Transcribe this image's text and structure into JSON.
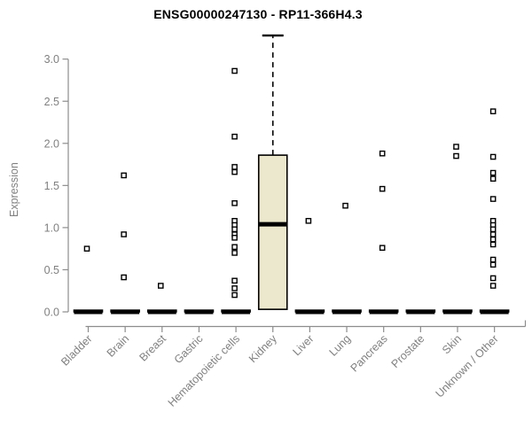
{
  "chart_data": {
    "type": "box",
    "title": "ENSG00000247130 - RP11-366H4.3",
    "ylabel": "Expression",
    "xlabel": "",
    "yticks": [
      0.0,
      0.5,
      1.0,
      1.5,
      2.0,
      2.5,
      3.0
    ],
    "ylim": [
      0,
      3.3
    ],
    "grid": false,
    "legend": false,
    "categories": [
      "Bladder",
      "Brain",
      "Breast",
      "Gastric",
      "Hematopoietic cells",
      "Kidney",
      "Liver",
      "Lung",
      "Pancreas",
      "Prostate",
      "Skin",
      "Unknown / Other"
    ],
    "series": [
      {
        "name": "Bladder",
        "q1": 0,
        "median": 0,
        "q3": 0.02,
        "whisker_low": 0,
        "whisker_high": 0.02,
        "outliers": [
          0.75
        ]
      },
      {
        "name": "Brain",
        "q1": 0,
        "median": 0,
        "q3": 0.02,
        "whisker_low": 0,
        "whisker_high": 0.02,
        "outliers": [
          1.62,
          0.92,
          0.41
        ]
      },
      {
        "name": "Breast",
        "q1": 0,
        "median": 0,
        "q3": 0.02,
        "whisker_low": 0,
        "whisker_high": 0.02,
        "outliers": [
          0.31
        ]
      },
      {
        "name": "Gastric",
        "q1": 0,
        "median": 0,
        "q3": 0.02,
        "whisker_low": 0,
        "whisker_high": 0.02,
        "outliers": []
      },
      {
        "name": "Hematopoietic cells",
        "q1": 0,
        "median": 0,
        "q3": 0.02,
        "whisker_low": 0,
        "whisker_high": 0.02,
        "outliers": [
          2.86,
          2.08,
          1.72,
          1.66,
          1.29,
          1.08,
          1.03,
          0.98,
          0.92,
          0.88,
          0.77,
          0.7,
          0.37,
          0.28,
          0.2
        ]
      },
      {
        "name": "Kidney",
        "q1": 0.03,
        "median": 1.04,
        "q3": 1.86,
        "whisker_low": 0.03,
        "whisker_high": 3.28,
        "whisker_style": "dashed",
        "outliers": []
      },
      {
        "name": "Liver",
        "q1": 0,
        "median": 0,
        "q3": 0.02,
        "whisker_low": 0,
        "whisker_high": 0.02,
        "outliers": [
          1.08
        ]
      },
      {
        "name": "Lung",
        "q1": 0,
        "median": 0,
        "q3": 0.02,
        "whisker_low": 0,
        "whisker_high": 0.02,
        "outliers": [
          1.26
        ]
      },
      {
        "name": "Pancreas",
        "q1": 0,
        "median": 0,
        "q3": 0.02,
        "whisker_low": 0,
        "whisker_high": 0.02,
        "outliers": [
          1.88,
          1.46,
          0.76
        ]
      },
      {
        "name": "Prostate",
        "q1": 0,
        "median": 0,
        "q3": 0.02,
        "whisker_low": 0,
        "whisker_high": 0.02,
        "outliers": []
      },
      {
        "name": "Skin",
        "q1": 0,
        "median": 0,
        "q3": 0.02,
        "whisker_low": 0,
        "whisker_high": 0.02,
        "outliers": [
          1.96,
          1.85
        ]
      },
      {
        "name": "Unknown / Other",
        "q1": 0,
        "median": 0,
        "q3": 0.02,
        "whisker_low": 0,
        "whisker_high": 0.02,
        "outliers": [
          2.38,
          1.84,
          1.65,
          1.58,
          1.34,
          1.08,
          1.03,
          0.98,
          0.92,
          0.86,
          0.8,
          0.62,
          0.56,
          0.4,
          0.31
        ]
      }
    ],
    "colors": {
      "background": "#ffffff",
      "title": "#000000",
      "axis_line": "#8c8c8c",
      "tick_label": "#808080",
      "box_fill": "#ece8cd",
      "box_border": "#000000",
      "median": "#000000",
      "whisker": "#000000",
      "outlier_stroke": "#000000",
      "outlier_fill": "#ffffff"
    }
  }
}
